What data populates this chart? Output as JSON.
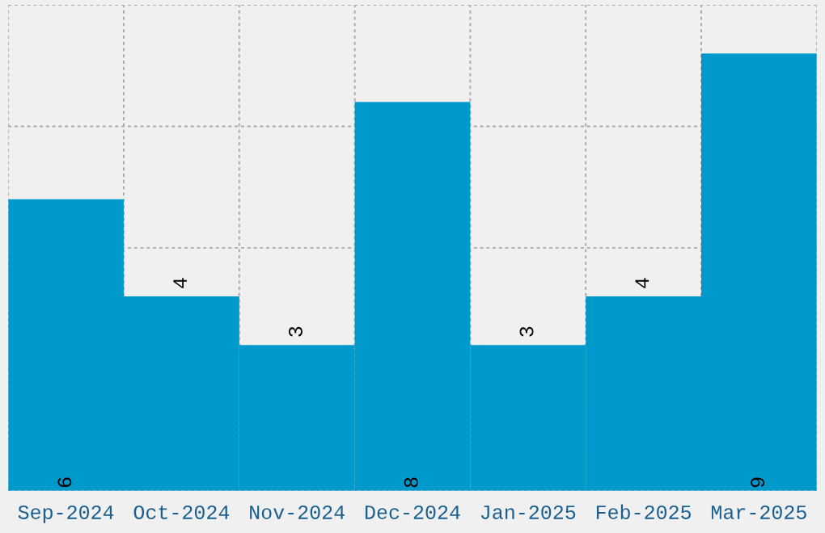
{
  "chart_data": {
    "type": "bar",
    "categories": [
      "Sep-2024",
      "Oct-2024",
      "Nov-2024",
      "Dec-2024",
      "Jan-2025",
      "Feb-2025",
      "Mar-2025"
    ],
    "values": [
      6,
      4,
      3,
      8,
      3,
      4,
      9
    ],
    "color": "#0099cc",
    "ylim": [
      0,
      10
    ],
    "tick_labels": "x",
    "grid": true,
    "data_labels": true
  }
}
